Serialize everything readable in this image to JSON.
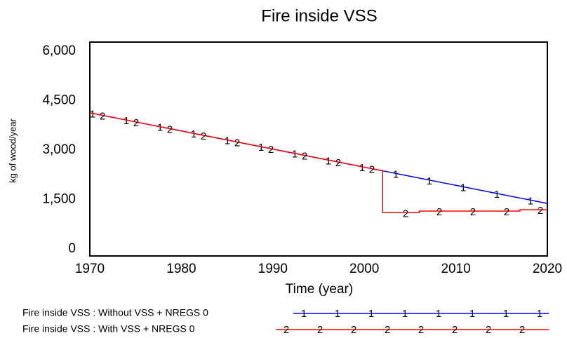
{
  "chart_data": {
    "type": "line",
    "title": "Fire inside VSS",
    "x_label": "Time  (year)",
    "y_label": "kg of wood/year",
    "xlim": [
      1970,
      2020
    ],
    "xticks": [
      1970,
      1980,
      1990,
      2000,
      2010,
      2020
    ],
    "ylim": [
      0,
      6000
    ],
    "yticks": [
      0,
      {
        "value": 1500,
        "label": "1,500"
      },
      {
        "value": 3000,
        "label": "3,000"
      },
      {
        "value": 4500,
        "label": "4,500"
      },
      {
        "value": 6000,
        "label": "6,000"
      }
    ],
    "series": [
      {
        "name": "Fire inside VSS : Without VSS + NREGS 0",
        "marker": "1",
        "color": "#0000ff",
        "x": [
          1970,
          1975,
          1980,
          1985,
          1990,
          1995,
          2000,
          2005,
          2010,
          2015,
          2020
        ],
        "values": [
          4130,
          3855,
          3580,
          3305,
          3030,
          2755,
          2480,
          2205,
          1930,
          1655,
          1380
        ]
      },
      {
        "name": "Fire inside VSS : With VSS + NREGS 0",
        "marker": "2",
        "color": "#ff0000",
        "x": [
          1970,
          1975,
          1980,
          1985,
          1990,
          1995,
          2000,
          2002,
          2002,
          2006,
          2006,
          2017,
          2017,
          2020
        ],
        "values": [
          4130,
          3855,
          3580,
          3305,
          3030,
          2755,
          2480,
          2370,
          1100,
          1100,
          1150,
          1150,
          1190,
          1190
        ]
      }
    ]
  }
}
